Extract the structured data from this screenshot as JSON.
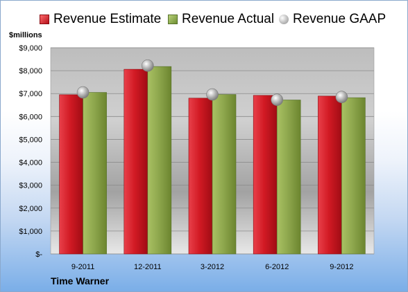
{
  "chart_data": {
    "type": "bar",
    "title": "",
    "company": "Time Warner",
    "ylabel": "$millions",
    "ylim": [
      0,
      9000
    ],
    "yticks": [
      {
        "value": 0,
        "label": "$-"
      },
      {
        "value": 1000,
        "label": "$1,000"
      },
      {
        "value": 2000,
        "label": "$2,000"
      },
      {
        "value": 3000,
        "label": "$3,000"
      },
      {
        "value": 4000,
        "label": "$4,000"
      },
      {
        "value": 5000,
        "label": "$5,000"
      },
      {
        "value": 6000,
        "label": "$6,000"
      },
      {
        "value": 7000,
        "label": "$7,000"
      },
      {
        "value": 8000,
        "label": "$8,000"
      },
      {
        "value": 9000,
        "label": "$9,000"
      }
    ],
    "categories": [
      "9-2011",
      "12-2011",
      "3-2012",
      "6-2012",
      "9-2012"
    ],
    "series": [
      {
        "name": "Revenue Estimate",
        "kind": "bar",
        "color": "#c8161f",
        "values": [
          6950,
          8060,
          6800,
          6920,
          6890
        ]
      },
      {
        "name": "Revenue Actual",
        "kind": "bar",
        "color": "#8aa34a",
        "values": [
          7050,
          8180,
          6960,
          6720,
          6820
        ]
      },
      {
        "name": "Revenue GAAP",
        "kind": "marker",
        "color": "#a6a6a6",
        "values": [
          7050,
          8220,
          6960,
          6730,
          6850
        ]
      }
    ],
    "legend_position": "top",
    "grid": true
  }
}
